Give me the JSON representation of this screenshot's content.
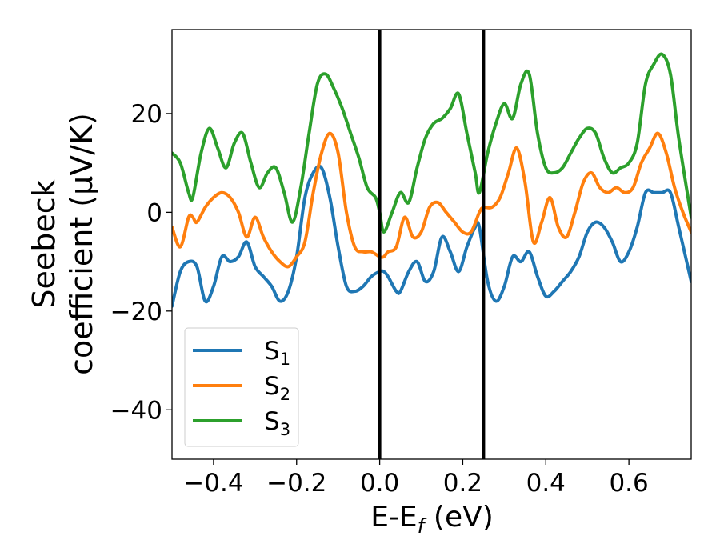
{
  "chart_data": {
    "type": "line",
    "xlabel": "E-E",
    "xlabel_sub": "f",
    "xlabel_unit": " (eV)",
    "ylabel_line1": "Seebeck",
    "ylabel_line2": "coefficient  (μV/K)",
    "xlim": [
      -0.5,
      0.75
    ],
    "ylim": [
      -50,
      37
    ],
    "xticks": [
      -0.4,
      -0.2,
      0.0,
      0.2,
      0.4,
      0.6
    ],
    "xtick_labels": [
      "−0.4",
      "−0.2",
      "0.0",
      "0.2",
      "0.4",
      "0.6"
    ],
    "yticks": [
      -40,
      -20,
      0,
      20
    ],
    "ytick_labels": [
      "−40",
      "−20",
      "0",
      "20"
    ],
    "vlines": [
      0.0,
      0.25
    ],
    "legend_placement": "lower-left",
    "grid": false,
    "series": [
      {
        "name": "S",
        "sub": "1",
        "color": "#1f77b4",
        "x": [
          -0.5,
          -0.48,
          -0.46,
          -0.44,
          -0.42,
          -0.4,
          -0.38,
          -0.36,
          -0.34,
          -0.32,
          -0.3,
          -0.28,
          -0.26,
          -0.24,
          -0.22,
          -0.2,
          -0.18,
          -0.16,
          -0.14,
          -0.12,
          -0.1,
          -0.08,
          -0.06,
          -0.04,
          -0.02,
          0.0,
          0.01,
          0.02,
          0.04,
          0.05,
          0.07,
          0.09,
          0.11,
          0.13,
          0.15,
          0.17,
          0.19,
          0.21,
          0.23,
          0.24,
          0.26,
          0.28,
          0.3,
          0.32,
          0.34,
          0.36,
          0.38,
          0.4,
          0.42,
          0.44,
          0.46,
          0.48,
          0.5,
          0.52,
          0.54,
          0.56,
          0.58,
          0.6,
          0.62,
          0.64,
          0.66,
          0.68,
          0.7,
          0.72,
          0.75
        ],
        "y": [
          -19,
          -12,
          -10,
          -11,
          -18,
          -15,
          -9,
          -10,
          -9,
          -6,
          -11,
          -13,
          -15,
          -18,
          -16,
          -9,
          3,
          8,
          9,
          3,
          -7,
          -15,
          -16,
          -15,
          -13,
          -12,
          -12,
          -13,
          -16,
          -16,
          -12,
          -10,
          -14,
          -12,
          -5,
          -8,
          -12,
          -7,
          -3,
          -3,
          -14,
          -18,
          -15,
          -9,
          -10,
          -8,
          -13,
          -17,
          -16,
          -14,
          -12,
          -9,
          -4,
          -2,
          -3,
          -6,
          -10,
          -8,
          -3,
          4,
          4,
          4,
          4,
          -3,
          -14
        ]
      },
      {
        "name": "S",
        "sub": "2",
        "color": "#ff7f0e",
        "x": [
          -0.5,
          -0.48,
          -0.46,
          -0.45,
          -0.44,
          -0.42,
          -0.4,
          -0.38,
          -0.36,
          -0.34,
          -0.32,
          -0.3,
          -0.28,
          -0.26,
          -0.24,
          -0.22,
          -0.2,
          -0.18,
          -0.16,
          -0.14,
          -0.12,
          -0.1,
          -0.08,
          -0.06,
          -0.04,
          -0.02,
          0.0,
          0.01,
          0.02,
          0.04,
          0.06,
          0.08,
          0.1,
          0.12,
          0.14,
          0.16,
          0.18,
          0.2,
          0.22,
          0.24,
          0.25,
          0.27,
          0.29,
          0.31,
          0.33,
          0.35,
          0.37,
          0.39,
          0.41,
          0.43,
          0.45,
          0.47,
          0.49,
          0.51,
          0.53,
          0.55,
          0.57,
          0.59,
          0.61,
          0.63,
          0.65,
          0.67,
          0.69,
          0.71,
          0.73,
          0.75
        ],
        "y": [
          -3,
          -7,
          -1,
          -1,
          -2,
          1,
          3,
          4,
          3,
          0,
          -5,
          -1,
          -5,
          -8,
          -10,
          -11,
          -9,
          -6,
          4,
          12,
          16,
          12,
          0,
          -7,
          -8,
          -8,
          -9,
          -9,
          -8,
          -7,
          -1,
          -5,
          -4,
          1,
          2,
          0,
          -2,
          -4,
          -4,
          0,
          1,
          1,
          3,
          8,
          13,
          6,
          -6,
          -2,
          3,
          -3,
          -5,
          0,
          6,
          8,
          5,
          4,
          5,
          4,
          5,
          10,
          13,
          16,
          12,
          5,
          0,
          -4
        ]
      },
      {
        "name": "S",
        "sub": "3",
        "color": "#2ca02c",
        "x": [
          -0.5,
          -0.48,
          -0.46,
          -0.45,
          -0.43,
          -0.41,
          -0.39,
          -0.37,
          -0.35,
          -0.33,
          -0.31,
          -0.29,
          -0.27,
          -0.25,
          -0.23,
          -0.21,
          -0.19,
          -0.17,
          -0.15,
          -0.13,
          -0.11,
          -0.09,
          -0.07,
          -0.05,
          -0.03,
          -0.01,
          0.0,
          0.01,
          0.03,
          0.05,
          0.07,
          0.09,
          0.11,
          0.13,
          0.15,
          0.17,
          0.19,
          0.21,
          0.23,
          0.24,
          0.26,
          0.28,
          0.3,
          0.32,
          0.34,
          0.36,
          0.38,
          0.4,
          0.42,
          0.44,
          0.46,
          0.48,
          0.5,
          0.52,
          0.54,
          0.56,
          0.58,
          0.6,
          0.62,
          0.64,
          0.66,
          0.68,
          0.7,
          0.72,
          0.75
        ],
        "y": [
          12,
          10,
          4,
          3,
          12,
          17,
          13,
          9,
          14,
          16,
          10,
          5,
          8,
          9,
          4,
          -2,
          5,
          16,
          26,
          28,
          25,
          21,
          16,
          11,
          5,
          3,
          0,
          -4,
          0,
          4,
          2,
          9,
          15,
          18,
          19,
          21,
          24,
          16,
          8,
          4,
          12,
          18,
          22,
          19,
          26,
          28,
          16,
          9,
          8,
          9,
          12,
          15,
          17,
          16,
          11,
          8,
          9,
          10,
          14,
          26,
          30,
          32,
          28,
          15,
          -1
        ]
      }
    ]
  }
}
